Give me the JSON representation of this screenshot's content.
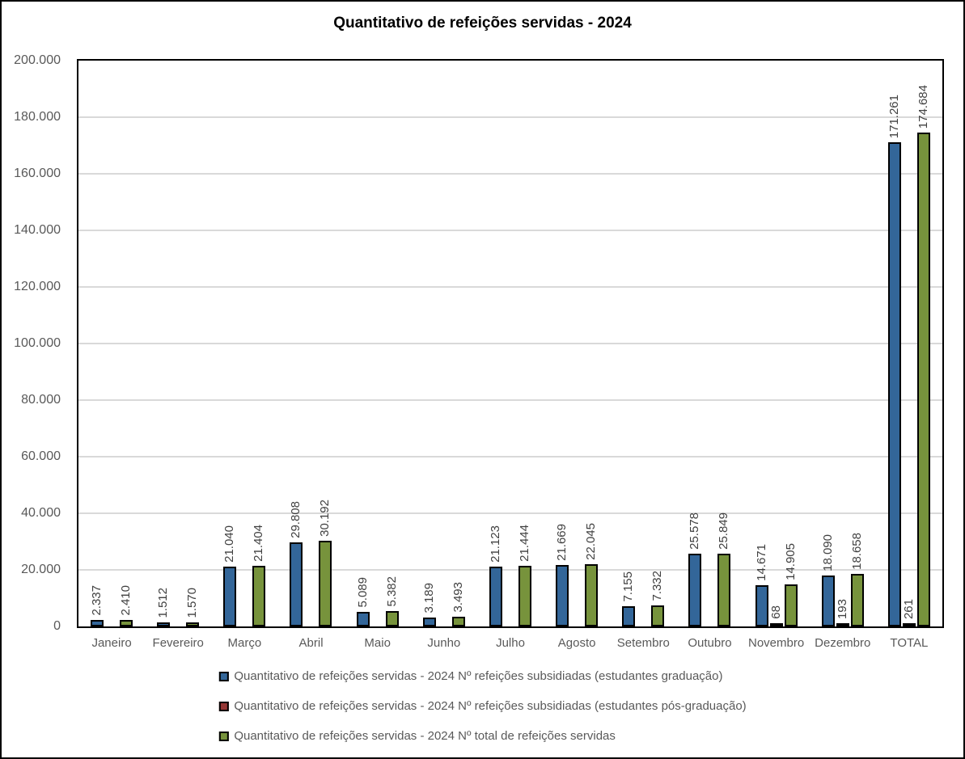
{
  "title": "Quantitativo de refeições servidas - 2024",
  "colors": {
    "series_blue": "#336699",
    "series_red": "#953735",
    "series_green": "#77933C",
    "gridline": "#D9D9D9",
    "axis_text": "#595959",
    "data_label_text": "#404040",
    "border": "#000000"
  },
  "chart_data": {
    "type": "bar",
    "title": "Quantitativo de refeições servidas - 2024",
    "categories": [
      "Janeiro",
      "Fevereiro",
      "Março",
      "Abril",
      "Maio",
      "Junho",
      "Julho",
      "Agosto",
      "Setembro",
      "Outubro",
      "Novembro",
      "Dezembro",
      "TOTAL"
    ],
    "series": [
      {
        "name": "Quantitativo de refeições servidas - 2024 Nº refeições subsidiadas (estudantes graduação)",
        "color": "#336699",
        "values": [
          2337,
          1512,
          21040,
          29808,
          5089,
          3189,
          21123,
          21669,
          7155,
          25578,
          14671,
          18090,
          171261
        ],
        "labels": [
          "2.337",
          "1.512",
          "21.040",
          "29.808",
          "5.089",
          "3.189",
          "21.123",
          "21.669",
          "7.155",
          "25.578",
          "14.671",
          "18.090",
          "171.261"
        ]
      },
      {
        "name": "Quantitativo de refeições servidas - 2024 Nº refeições subsidiadas (estudantes pós-graduação)",
        "color": "#953735",
        "values": [
          0,
          0,
          0,
          0,
          0,
          0,
          0,
          0,
          0,
          0,
          68,
          193,
          261
        ],
        "labels": [
          "",
          "",
          "",
          "",
          "",
          "",
          "",
          "",
          "",
          "",
          "68",
          "193",
          "261"
        ]
      },
      {
        "name": "Quantitativo de refeições servidas - 2024 Nº total de refeições servidas",
        "color": "#77933C",
        "values": [
          2410,
          1570,
          21404,
          30192,
          5382,
          3493,
          21444,
          22045,
          7332,
          25849,
          14905,
          18658,
          174684
        ],
        "labels": [
          "2.410",
          "1.570",
          "21.404",
          "30.192",
          "5.382",
          "3.493",
          "21.444",
          "22.045",
          "7.332",
          "25.849",
          "14.905",
          "18.658",
          "174.684"
        ]
      }
    ],
    "xlabel": "",
    "ylabel": "",
    "ylim": [
      0,
      200000
    ],
    "y_ticks": [
      {
        "value": 0,
        "label": "0"
      },
      {
        "value": 20000,
        "label": "20.000"
      },
      {
        "value": 40000,
        "label": "40.000"
      },
      {
        "value": 60000,
        "label": "60.000"
      },
      {
        "value": 80000,
        "label": "80.000"
      },
      {
        "value": 100000,
        "label": "100.000"
      },
      {
        "value": 120000,
        "label": "120.000"
      },
      {
        "value": 140000,
        "label": "140.000"
      },
      {
        "value": 160000,
        "label": "160.000"
      },
      {
        "value": 180000,
        "label": "180.000"
      },
      {
        "value": 200000,
        "label": "200.000"
      }
    ],
    "grid": "horizontal",
    "legend_position": "bottom",
    "data_labels_rotated": true
  }
}
